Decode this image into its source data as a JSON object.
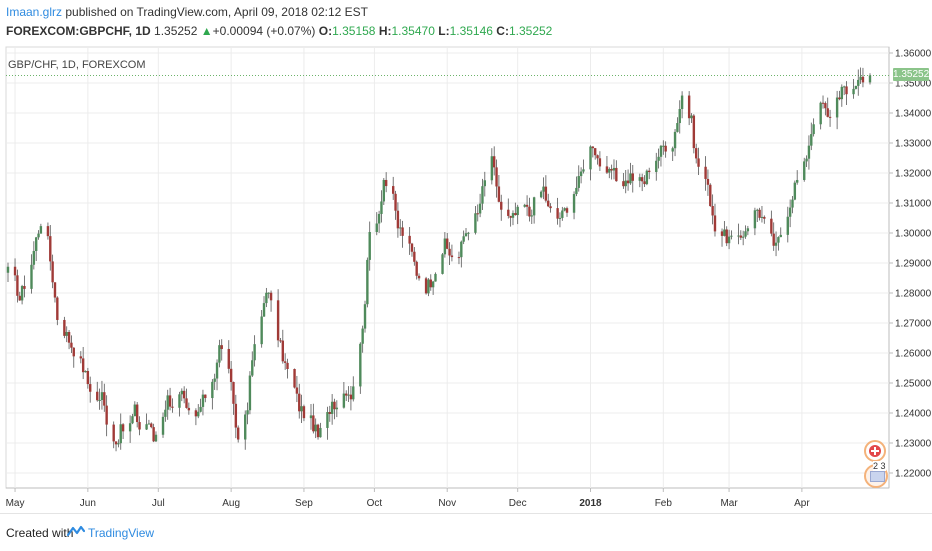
{
  "header": {
    "author": "Imaan.glrz",
    "published_text": " published on TradingView.com, April 09, 2018 02:12 EST",
    "symbol": "FOREXCOM:GBPCHF, 1D",
    "last": "1.35252",
    "change_arrow": "▲",
    "change": "+0.00094 (+0.07%)",
    "open_label": "O:",
    "open": "1.35158",
    "high_label": "H:",
    "high": "1.35470",
    "low_label": "L:",
    "low": "1.35146",
    "close_label": "C:",
    "close": "1.35252"
  },
  "chart_title": "GBP/CHF, 1D, FOREXCOM",
  "price_label": "1.35252",
  "badges": {
    "count": "2 3"
  },
  "footer": {
    "created_with": "Created with",
    "brand": "TradingView"
  },
  "colors": {
    "up": "#4f8a5b",
    "down": "#a03a37",
    "accent": "#2f8be0",
    "last_price": "#8bc48a",
    "grid": "#ececec"
  },
  "chart_data": {
    "type": "candlestick",
    "title": "GBP/CHF, 1D, FOREXCOM",
    "ylim": [
      1.215,
      1.362
    ],
    "y_ticks": [
      "1.22000",
      "1.23000",
      "1.24000",
      "1.25000",
      "1.26000",
      "1.27000",
      "1.28000",
      "1.29000",
      "1.30000",
      "1.31000",
      "1.32000",
      "1.33000",
      "1.34000",
      "1.35000",
      "1.36000"
    ],
    "x_ticks": [
      {
        "label": "May",
        "month": "2017-05"
      },
      {
        "label": "Jun",
        "month": "2017-06"
      },
      {
        "label": "Jul",
        "month": "2017-07"
      },
      {
        "label": "Aug",
        "month": "2017-08"
      },
      {
        "label": "Sep",
        "month": "2017-09"
      },
      {
        "label": "Oct",
        "month": "2017-10"
      },
      {
        "label": "Nov",
        "month": "2017-11"
      },
      {
        "label": "Dec",
        "month": "2017-12"
      },
      {
        "label": "2018",
        "month": "2018-01",
        "bold": true
      },
      {
        "label": "Feb",
        "month": "2018-02"
      },
      {
        "label": "Mar",
        "month": "2018-03"
      },
      {
        "label": "Apr",
        "month": "2018-04"
      }
    ],
    "last_price": 1.35252,
    "grid": true,
    "anchors": [
      [
        "2017-04-28",
        1.287
      ],
      [
        "2017-05-01",
        1.284
      ],
      [
        "2017-05-03",
        1.278
      ],
      [
        "2017-05-05",
        1.283
      ],
      [
        "2017-05-08",
        1.29
      ],
      [
        "2017-05-10",
        1.298
      ],
      [
        "2017-05-12",
        1.304
      ],
      [
        "2017-05-15",
        1.297
      ],
      [
        "2017-05-17",
        1.285
      ],
      [
        "2017-05-19",
        1.272
      ],
      [
        "2017-05-23",
        1.266
      ],
      [
        "2017-05-26",
        1.261
      ],
      [
        "2017-05-30",
        1.255
      ],
      [
        "2017-06-01",
        1.25
      ],
      [
        "2017-06-05",
        1.244
      ],
      [
        "2017-06-07",
        1.246
      ],
      [
        "2017-06-09",
        1.238
      ],
      [
        "2017-06-13",
        1.23
      ],
      [
        "2017-06-15",
        1.234
      ],
      [
        "2017-06-19",
        1.236
      ],
      [
        "2017-06-21",
        1.241
      ],
      [
        "2017-06-23",
        1.235
      ],
      [
        "2017-06-27",
        1.237
      ],
      [
        "2017-06-29",
        1.231
      ],
      [
        "2017-07-03",
        1.24
      ],
      [
        "2017-07-05",
        1.245
      ],
      [
        "2017-07-07",
        1.243
      ],
      [
        "2017-07-11",
        1.246
      ],
      [
        "2017-07-13",
        1.24
      ],
      [
        "2017-07-17",
        1.238
      ],
      [
        "2017-07-19",
        1.242
      ],
      [
        "2017-07-21",
        1.246
      ],
      [
        "2017-07-25",
        1.253
      ],
      [
        "2017-07-27",
        1.262
      ],
      [
        "2017-07-31",
        1.256
      ],
      [
        "2017-08-02",
        1.241
      ],
      [
        "2017-08-04",
        1.231
      ],
      [
        "2017-08-08",
        1.243
      ],
      [
        "2017-08-10",
        1.258
      ],
      [
        "2017-08-14",
        1.272
      ],
      [
        "2017-08-16",
        1.282
      ],
      [
        "2017-08-18",
        1.276
      ],
      [
        "2017-08-22",
        1.262
      ],
      [
        "2017-08-24",
        1.256
      ],
      [
        "2017-08-28",
        1.248
      ],
      [
        "2017-08-30",
        1.242
      ],
      [
        "2017-09-01",
        1.24
      ],
      [
        "2017-09-05",
        1.236
      ],
      [
        "2017-09-07",
        1.232
      ],
      [
        "2017-09-11",
        1.239
      ],
      [
        "2017-09-13",
        1.244
      ],
      [
        "2017-09-15",
        1.243
      ],
      [
        "2017-09-19",
        1.248
      ],
      [
        "2017-09-21",
        1.246
      ],
      [
        "2017-09-25",
        1.262
      ],
      [
        "2017-09-27",
        1.278
      ],
      [
        "2017-09-29",
        1.3
      ],
      [
        "2017-10-03",
        1.307
      ],
      [
        "2017-10-05",
        1.318
      ],
      [
        "2017-10-09",
        1.311
      ],
      [
        "2017-10-11",
        1.302
      ],
      [
        "2017-10-13",
        1.3
      ],
      [
        "2017-10-17",
        1.293
      ],
      [
        "2017-10-19",
        1.287
      ],
      [
        "2017-10-23",
        1.282
      ],
      [
        "2017-10-25",
        1.284
      ],
      [
        "2017-10-27",
        1.288
      ],
      [
        "2017-10-31",
        1.296
      ],
      [
        "2017-11-02",
        1.293
      ],
      [
        "2017-11-06",
        1.292
      ],
      [
        "2017-11-08",
        1.299
      ],
      [
        "2017-11-10",
        1.302
      ],
      [
        "2017-11-14",
        1.306
      ],
      [
        "2017-11-16",
        1.314
      ],
      [
        "2017-11-20",
        1.326
      ],
      [
        "2017-11-22",
        1.314
      ],
      [
        "2017-11-24",
        1.308
      ],
      [
        "2017-11-28",
        1.304
      ],
      [
        "2017-11-30",
        1.306
      ],
      [
        "2017-12-04",
        1.309
      ],
      [
        "2017-12-06",
        1.306
      ],
      [
        "2017-12-08",
        1.31
      ],
      [
        "2017-12-12",
        1.315
      ],
      [
        "2017-12-14",
        1.308
      ],
      [
        "2017-12-18",
        1.305
      ],
      [
        "2017-12-20",
        1.306
      ],
      [
        "2017-12-22",
        1.309
      ],
      [
        "2017-12-27",
        1.317
      ],
      [
        "2017-12-29",
        1.323
      ],
      [
        "2018-01-02",
        1.33
      ],
      [
        "2018-01-04",
        1.325
      ],
      [
        "2018-01-08",
        1.318
      ],
      [
        "2018-01-10",
        1.321
      ],
      [
        "2018-01-12",
        1.318
      ],
      [
        "2018-01-16",
        1.317
      ],
      [
        "2018-01-18",
        1.319
      ],
      [
        "2018-01-22",
        1.317
      ],
      [
        "2018-01-24",
        1.317
      ],
      [
        "2018-01-26",
        1.322
      ],
      [
        "2018-01-30",
        1.326
      ],
      [
        "2018-02-01",
        1.329
      ],
      [
        "2018-02-05",
        1.33
      ],
      [
        "2018-02-07",
        1.338
      ],
      [
        "2018-02-09",
        1.346
      ],
      [
        "2018-02-13",
        1.337
      ],
      [
        "2018-02-15",
        1.324
      ],
      [
        "2018-02-19",
        1.318
      ],
      [
        "2018-02-21",
        1.311
      ],
      [
        "2018-02-23",
        1.302
      ],
      [
        "2018-02-27",
        1.299
      ],
      [
        "2018-03-01",
        1.298
      ],
      [
        "2018-03-05",
        1.297
      ],
      [
        "2018-03-07",
        1.3
      ],
      [
        "2018-03-09",
        1.303
      ],
      [
        "2018-03-13",
        1.308
      ],
      [
        "2018-03-15",
        1.305
      ],
      [
        "2018-03-19",
        1.298
      ],
      [
        "2018-03-21",
        1.295
      ],
      [
        "2018-03-23",
        1.3
      ],
      [
        "2018-03-27",
        1.31
      ],
      [
        "2018-03-29",
        1.316
      ],
      [
        "2018-04-02",
        1.322
      ],
      [
        "2018-04-04",
        1.33
      ],
      [
        "2018-04-06",
        1.338
      ],
      [
        "2018-04-10",
        1.343
      ],
      [
        "2018-04-12",
        1.338
      ],
      [
        "2018-04-16",
        1.345
      ],
      [
        "2018-04-18",
        1.348
      ],
      [
        "2018-04-20",
        1.346
      ],
      [
        "2018-04-24",
        1.35
      ],
      [
        "2018-04-26",
        1.352
      ],
      [
        "2018-04-30",
        1.35252
      ]
    ]
  }
}
